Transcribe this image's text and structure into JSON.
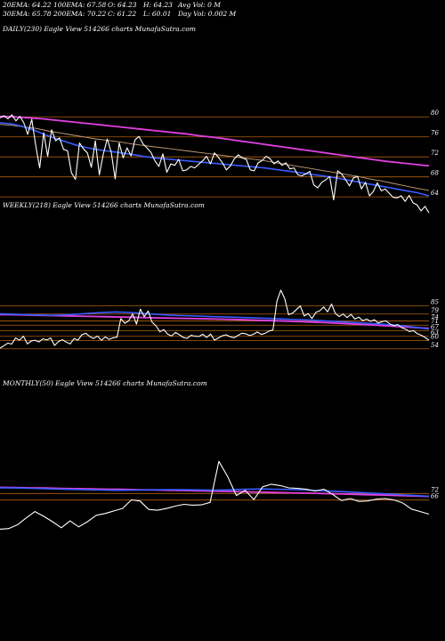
{
  "header": {
    "row1": [
      "20EMA: 64.22",
      "100EMA: 67.58",
      "O: 64.23",
      "H: 64.23",
      "Avg Vol: 0  M"
    ],
    "row2": [
      "30EMA: 65.78",
      "200EMA: 70.22",
      "C: 61.22",
      "L: 60.01",
      "Day Vol: 0.002  M"
    ]
  },
  "colors": {
    "background": "#000000",
    "price": "#ffffff",
    "ema_short": "#3a5cff",
    "ema_long": "#e040e0",
    "gridline": "#b06010",
    "ema_mid": "#c8a078"
  },
  "chart_data": [
    {
      "type": "line",
      "title": "DAILY(230) Eagle  View  514266  charts MunafaSutra.com",
      "yticks": [
        80,
        76,
        72,
        68,
        64
      ],
      "ylim": [
        61,
        82
      ],
      "price": [
        79.8,
        80.2,
        79.6,
        80.4,
        79.2,
        80.1,
        78.8,
        76.5,
        79.5,
        74.2,
        69.8,
        76.8,
        72.1,
        77.4,
        75.2,
        75.8,
        73.5,
        73.2,
        68.8,
        67.5,
        74.8,
        73.6,
        72.8,
        69.9,
        75.2,
        68.4,
        72.5,
        75.6,
        72.9,
        67.6,
        74.8,
        71.8,
        73.8,
        72.2,
        75.4,
        76.1,
        74.6,
        73.8,
        72.9,
        71.2,
        70.1,
        72.6,
        68.9,
        70.6,
        70.3,
        71.5,
        69.2,
        69.4,
        70.1,
        69.8,
        70.5,
        71.2,
        72.1,
        70.6,
        72.8,
        71.9,
        70.8,
        69.4,
        70.2,
        71.6,
        72.4,
        71.8,
        71.5,
        69.4,
        69.2,
        70.8,
        71.3,
        72.1,
        71.6,
        70.6,
        71.2,
        70.3,
        70.8,
        69.6,
        69.8,
        68.4,
        68.2,
        68.6,
        69.1,
        66.4,
        65.8,
        66.9,
        67.4,
        68.1,
        63.4,
        69.2,
        68.6,
        67.4,
        66.2,
        67.8,
        68.1,
        65.6,
        66.9,
        64.2,
        65.1,
        66.8,
        65.2,
        65.6,
        64.7,
        63.9,
        63.8,
        64.2,
        63.1,
        64.3,
        62.8,
        62.4,
        61.2,
        62.1,
        60.8
      ],
      "ema_short": [
        78.8,
        78.6,
        78.1,
        77.4,
        76.5,
        75.7,
        75.0,
        74.3,
        73.8,
        73.4,
        73.1,
        72.8,
        72.5,
        72.1,
        71.8,
        71.6,
        71.4,
        71.2,
        71.0,
        70.8,
        70.6,
        70.4,
        70.2,
        70.0,
        69.8,
        69.5,
        69.2,
        68.9,
        68.6,
        68.3,
        68.0,
        67.6,
        67.2,
        66.8,
        66.4,
        66.0,
        65.6,
        65.2,
        64.8,
        64.2
      ],
      "ema_long": [
        80.1,
        80.0,
        79.8,
        79.6,
        79.3,
        79.0,
        78.7,
        78.4,
        78.1,
        77.8,
        77.5,
        77.2,
        76.9,
        76.6,
        76.2,
        75.9,
        75.5,
        75.1,
        74.7,
        74.3,
        73.9,
        73.5,
        73.1,
        72.7,
        72.3,
        71.9,
        71.5,
        71.1,
        70.8,
        70.5,
        70.2
      ],
      "ema_mid": [
        78.5,
        78.3,
        78.0,
        77.7,
        77.2,
        76.8,
        76.4,
        76.0,
        75.6,
        75.3,
        75.0,
        74.6,
        74.3,
        74.0,
        73.7,
        73.4,
        73.1,
        72.8,
        72.5,
        72.2,
        71.9,
        71.6,
        71.3,
        70.9,
        70.5,
        70.1,
        69.7,
        69.3,
        68.9,
        68.5,
        68.1,
        67.6,
        67.2,
        66.7,
        66.2,
        65.7,
        65.3
      ]
    },
    {
      "type": "line",
      "title": "WEEKLY(218) Eagle  View  514266  charts MunafaSutra.com",
      "yticks": [
        85,
        79,
        74,
        71,
        67,
        63,
        60,
        54
      ],
      "ylim": [
        50,
        100
      ],
      "price": [
        54.5,
        56.2,
        58.1,
        57.4,
        61.8,
        60.2,
        63.1,
        57.5,
        59.6,
        60.1,
        58.9,
        61.2,
        60.3,
        61.8,
        56.4,
        59.2,
        60.5,
        58.8,
        57.5,
        61.4,
        60.2,
        64.1,
        65.2,
        62.8,
        61.4,
        63.2,
        60.1,
        62.5,
        60.8,
        61.9,
        62.4,
        75.8,
        72.4,
        74.1,
        79.1,
        71.8,
        82.5,
        77.1,
        81.2,
        73.1,
        70.5,
        66.2,
        67.8,
        64.5,
        63.2,
        65.8,
        64.1,
        62.2,
        61.5,
        63.7,
        63.1,
        62.8,
        64.5,
        62.1,
        64.6,
        60.2,
        61.8,
        63.4,
        64.1,
        62.7,
        61.9,
        63.5,
        65.2,
        64.8,
        63.5,
        64.4,
        66.1,
        64.3,
        65.2,
        66.8,
        67.5,
        88.1,
        96.2,
        90.1,
        78.5,
        79.6,
        82.2,
        84.8,
        77.6,
        79.4,
        75.8,
        80.2,
        81.4,
        84.1,
        80.6,
        86.2,
        79.4,
        77.2,
        79.1,
        76.5,
        78.8,
        75.4,
        76.8,
        74.2,
        75.4,
        73.8,
        74.9,
        72.5,
        73.6,
        74.1,
        71.8,
        70.6,
        71.5,
        69.2,
        68.1,
        66.4,
        67.1,
        64.9,
        63.8,
        62.2,
        60.1
      ],
      "ema_short": [
        79.2,
        78.9,
        78.6,
        78.3,
        78.1,
        78.4,
        79.0,
        79.6,
        80.2,
        80.5,
        80.1,
        79.4,
        78.8,
        78.3,
        77.9,
        77.6,
        77.3,
        77.0,
        76.7,
        76.4,
        76.1,
        75.8,
        75.4,
        75.0,
        74.6,
        74.1,
        73.6,
        73.1,
        72.5,
        71.9,
        71.3,
        70.5,
        69.4,
        68.2
      ],
      "ema_long": [
        78.6,
        78.5,
        78.3,
        78.1,
        77.9,
        77.7,
        77.5,
        77.3,
        77.1,
        76.9,
        76.7,
        76.5,
        76.3,
        76.1,
        75.9,
        75.7,
        75.5,
        75.3,
        75.1,
        74.8,
        74.5,
        74.2,
        73.9,
        73.6,
        73.2,
        72.8,
        72.4,
        71.9,
        71.4,
        70.9,
        70.4,
        69.8,
        69.2,
        68.7
      ]
    },
    {
      "type": "line",
      "title": "MONTHLY(50) Eagle  View  514266  charts MunafaSutra.com",
      "yticks": [
        72,
        66
      ],
      "ylim": [
        35,
        120
      ],
      "price": [
        39.5,
        40.1,
        43.6,
        49.8,
        55.6,
        51.2,
        46.3,
        40.8,
        47.1,
        41.6,
        46.4,
        52.2,
        53.8,
        56.1,
        58.4,
        66.2,
        65.1,
        57.4,
        56.8,
        58.3,
        60.5,
        62.1,
        61.4,
        61.6,
        63.9,
        101.2,
        87.4,
        70.1,
        74.8,
        66.5,
        78.1,
        80.4,
        79.2,
        77.1,
        76.6,
        75.8,
        74.2,
        75.9,
        71.2,
        65.6,
        67.4,
        64.8,
        65.2,
        66.8,
        67.3,
        66.1,
        63.4,
        57.8,
        55.6,
        53.2
      ],
      "ema_short": [
        77.2,
        77.0,
        76.7,
        76.3,
        76.0,
        75.6,
        75.3,
        75.0,
        74.9,
        75.1,
        75.3,
        75.5,
        75.4,
        75.2,
        75.0,
        75.3,
        75.8,
        76.1,
        75.9,
        75.6,
        75.1,
        74.5,
        73.9,
        73.2,
        72.5,
        71.8,
        71.0,
        70.2,
        69.5
      ],
      "ema_long": [
        77.6,
        77.4,
        77.1,
        76.9,
        76.6,
        76.4,
        76.2,
        75.9,
        75.7,
        75.4,
        75.2,
        74.9,
        74.7,
        74.4,
        74.1,
        73.8,
        73.5,
        73.2,
        72.9,
        72.6,
        72.3,
        72.0,
        71.7,
        71.3,
        70.9,
        70.5,
        70.1,
        69.7,
        69.3
      ]
    }
  ]
}
